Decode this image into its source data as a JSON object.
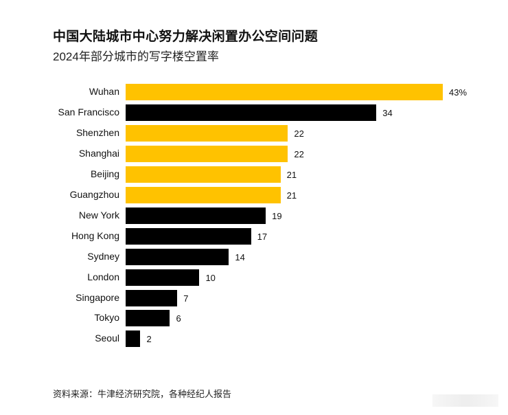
{
  "header": {
    "title": "中国大陆城市中心努力解决闲置办公空间问题",
    "subtitle": "2024年部分城市的写字楼空置率"
  },
  "footer": {
    "source": "资料来源：牛津经济研究院，各种经纪人报告"
  },
  "colors": {
    "highlight": "#FFC200",
    "default": "#000000"
  },
  "chart_data": {
    "type": "bar",
    "orientation": "horizontal",
    "title": "中国大陆城市中心努力解决闲置办公空间问题",
    "subtitle": "2024年部分城市的写字楼空置率",
    "xlabel": "",
    "ylabel": "",
    "unit": "%",
    "grid": false,
    "legend": null,
    "categories": [
      "Wuhan",
      "San Francisco",
      "Shenzhen",
      "Shanghai",
      "Beijing",
      "Guangzhou",
      "New York",
      "Hong Kong",
      "Sydney",
      "London",
      "Singapore",
      "Tokyo",
      "Seoul"
    ],
    "values": [
      43,
      34,
      22,
      22,
      21,
      21,
      19,
      17,
      14,
      10,
      7,
      6,
      2
    ],
    "value_labels": [
      "43%",
      "34",
      "22",
      "22",
      "21",
      "21",
      "19",
      "17",
      "14",
      "10",
      "7",
      "6",
      "2"
    ],
    "highlighted": [
      true,
      false,
      true,
      true,
      true,
      true,
      false,
      false,
      false,
      false,
      false,
      false,
      false
    ],
    "xlim": [
      0,
      43
    ],
    "source": "资料来源：牛津经济研究院，各种经纪人报告"
  }
}
